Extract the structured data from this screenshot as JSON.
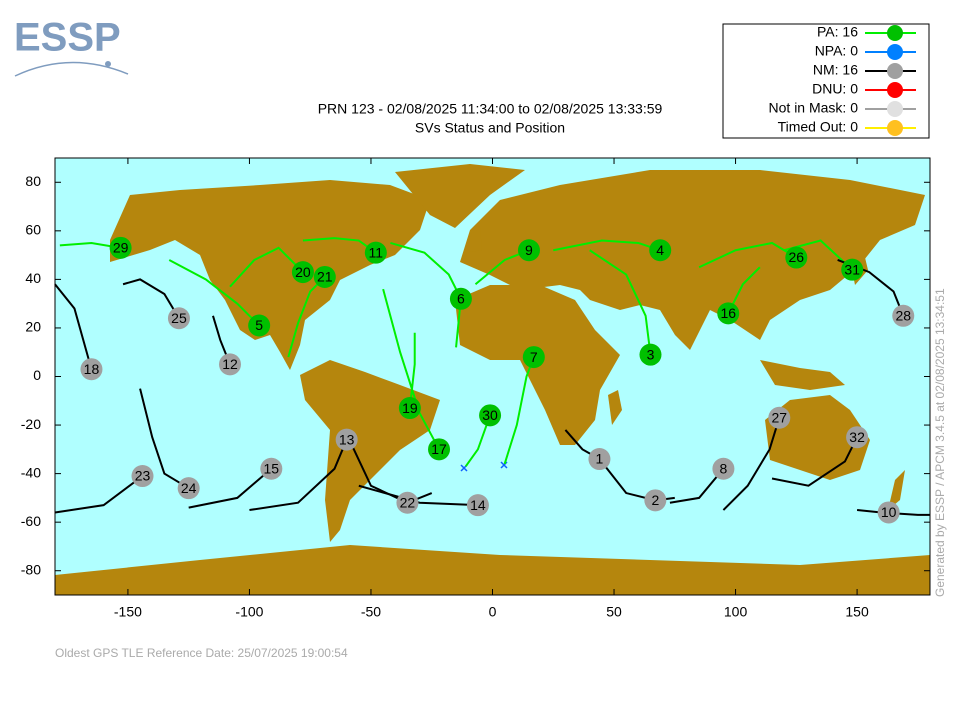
{
  "logo": "ESSP",
  "chart_data": {
    "type": "sky-map",
    "title": "PRN 123 - 02/08/2025 11:34:00 to 02/08/2025 13:33:59",
    "subtitle": "SVs Status and Position",
    "footer": "Oldest GPS TLE Reference Date: 25/07/2025 19:00:54",
    "side_note": "Generated by ESSP / APCM 3.4.5 at 02/08/2025 13:34:51",
    "xlim": [
      -180,
      180
    ],
    "ylim": [
      -90,
      90
    ],
    "xticks": [
      -150,
      -100,
      -50,
      0,
      50,
      100,
      150
    ],
    "yticks": [
      -80,
      -60,
      -40,
      -20,
      0,
      20,
      40,
      60,
      80
    ],
    "legend_position": "top-right",
    "series": [
      {
        "name": "PA: 16",
        "color": "#00c000",
        "line_color": "#00ee00",
        "points": [
          {
            "label": "29",
            "x": -153,
            "y": 53,
            "track_x": [
              -178,
              -165,
              -153
            ],
            "track_y": [
              54,
              55,
              53
            ]
          },
          {
            "label": "20",
            "x": -78,
            "y": 43,
            "track_x": [
              -108,
              -98,
              -88,
              -78
            ],
            "track_y": [
              37,
              48,
              53,
              43
            ]
          },
          {
            "label": "21",
            "x": -69,
            "y": 41,
            "track_x": [
              -84,
              -80,
              -75,
              -69
            ],
            "track_y": [
              8,
              22,
              35,
              41
            ]
          },
          {
            "label": "11",
            "x": -48,
            "y": 51,
            "track_x": [
              -78,
              -65,
              -55,
              -48
            ],
            "track_y": [
              56,
              57,
              56,
              51
            ]
          },
          {
            "label": "5",
            "x": -96,
            "y": 21,
            "track_x": [
              -133,
              -118,
              -105,
              -96
            ],
            "track_y": [
              48,
              40,
              30,
              21
            ]
          },
          {
            "label": "6",
            "x": -13,
            "y": 32,
            "track_x": [
              -42,
              -28,
              -18,
              -13,
              -15
            ],
            "track_y": [
              55,
              51,
              42,
              32,
              12
            ]
          },
          {
            "label": "9",
            "x": 15,
            "y": 52,
            "track_x": [
              -7,
              5,
              15
            ],
            "track_y": [
              38,
              48,
              52
            ]
          },
          {
            "label": "4",
            "x": 69,
            "y": 52,
            "track_x": [
              25,
              45,
              60,
              69
            ],
            "track_y": [
              52,
              56,
              55,
              52
            ]
          },
          {
            "label": "7",
            "x": 17,
            "y": 8,
            "track_x": [
              5,
              10,
              14,
              17
            ],
            "track_y": [
              -36,
              -20,
              0,
              8
            ]
          },
          {
            "label": "3",
            "x": 65,
            "y": 9,
            "track_x": [
              40,
              55,
              63,
              65
            ],
            "track_y": [
              52,
              42,
              25,
              9
            ]
          },
          {
            "label": "26",
            "x": 125,
            "y": 49,
            "track_x": [
              85,
              100,
              115,
              125
            ],
            "track_y": [
              45,
              52,
              55,
              49
            ]
          },
          {
            "label": "31",
            "x": 148,
            "y": 44,
            "track_x": [
              120,
              135,
              148
            ],
            "track_y": [
              52,
              56,
              44
            ]
          },
          {
            "label": "16",
            "x": 97,
            "y": 26,
            "track_x": [
              110,
              103,
              97
            ],
            "track_y": [
              45,
              38,
              26
            ]
          },
          {
            "label": "19",
            "x": -34,
            "y": -13,
            "track_x": [
              -32,
              -32,
              -34
            ],
            "track_y": [
              18,
              5,
              -13
            ]
          },
          {
            "label": "30",
            "x": -1,
            "y": -16,
            "track_x": [
              -11,
              -6,
              -1
            ],
            "track_y": [
              -37,
              -30,
              -16
            ]
          },
          {
            "label": "17",
            "x": -22,
            "y": -30,
            "track_x": [
              -45,
              -38,
              -30,
              -22
            ],
            "track_y": [
              36,
              10,
              -15,
              -30
            ]
          }
        ]
      },
      {
        "name": "NPA: 0",
        "color": "#0080ff",
        "line_color": "#0080ff",
        "points": []
      },
      {
        "name": "NM: 16",
        "color": "#a0a0a0",
        "line_color": "#000000",
        "points": [
          {
            "label": "25",
            "x": -129,
            "y": 24,
            "track_x": [
              -152,
              -145,
              -135,
              -129
            ],
            "track_y": [
              38,
              40,
              34,
              24
            ]
          },
          {
            "label": "18",
            "x": -165,
            "y": 3,
            "track_x": [
              -180,
              -172,
              -165
            ],
            "track_y": [
              38,
              28,
              3
            ]
          },
          {
            "label": "12",
            "x": -108,
            "y": 5,
            "track_x": [
              -115,
              -112,
              -108
            ],
            "track_y": [
              25,
              15,
              5
            ]
          },
          {
            "label": "23",
            "x": -144,
            "y": -41,
            "track_x": [
              -180,
              -160,
              -144
            ],
            "track_y": [
              -56,
              -53,
              -41
            ]
          },
          {
            "label": "24",
            "x": -125,
            "y": -46,
            "track_x": [
              -145,
              -140,
              -135,
              -125
            ],
            "track_y": [
              -5,
              -25,
              -40,
              -46
            ]
          },
          {
            "label": "15",
            "x": -91,
            "y": -38,
            "track_x": [
              -125,
              -105,
              -91
            ],
            "track_y": [
              -54,
              -50,
              -38
            ]
          },
          {
            "label": "13",
            "x": -60,
            "y": -26,
            "track_x": [
              -100,
              -80,
              -65,
              -60
            ],
            "track_y": [
              -55,
              -52,
              -38,
              -26
            ]
          },
          {
            "label": "22",
            "x": -35,
            "y": -52,
            "track_x": [
              -58,
              -50,
              -35,
              -25
            ],
            "track_y": [
              -28,
              -45,
              -52,
              -48
            ]
          },
          {
            "label": "14",
            "x": -6,
            "y": -53,
            "track_x": [
              -55,
              -30,
              -6
            ],
            "track_y": [
              -45,
              -52,
              -53
            ]
          },
          {
            "label": "1",
            "x": 44,
            "y": -34,
            "track_x": [
              30,
              37,
              44
            ],
            "track_y": [
              -22,
              -30,
              -34
            ]
          },
          {
            "label": "2",
            "x": 67,
            "y": -51,
            "track_x": [
              44,
              55,
              67,
              75
            ],
            "track_y": [
              -34,
              -48,
              -51,
              -50
            ]
          },
          {
            "label": "8",
            "x": 95,
            "y": -38,
            "track_x": [
              73,
              85,
              95
            ],
            "track_y": [
              -52,
              -50,
              -38
            ]
          },
          {
            "label": "27",
            "x": 118,
            "y": -17,
            "track_x": [
              95,
              105,
              114,
              118
            ],
            "track_y": [
              -55,
              -45,
              -30,
              -17
            ]
          },
          {
            "label": "32",
            "x": 150,
            "y": -25,
            "track_x": [
              115,
              130,
              145,
              150
            ],
            "track_y": [
              -42,
              -45,
              -35,
              -25
            ]
          },
          {
            "label": "28",
            "x": 169,
            "y": 25,
            "track_x": [
              142,
              155,
              165,
              169
            ],
            "track_y": [
              48,
              43,
              35,
              25
            ]
          },
          {
            "label": "10",
            "x": 163,
            "y": -56,
            "track_x": [
              150,
              160,
              175,
              180
            ],
            "track_y": [
              -55,
              -56,
              -57,
              -57
            ]
          }
        ]
      },
      {
        "name": "DNU: 0",
        "color": "#ff0000",
        "line_color": "#ff0000",
        "points": []
      },
      {
        "name": "Not in Mask: 0",
        "color": "#e0e0e0",
        "line_color": "#a0a0a0",
        "points": []
      },
      {
        "name": "Timed Out: 0",
        "color": "#ffc020",
        "line_color": "#ffee00",
        "points": []
      }
    ]
  }
}
